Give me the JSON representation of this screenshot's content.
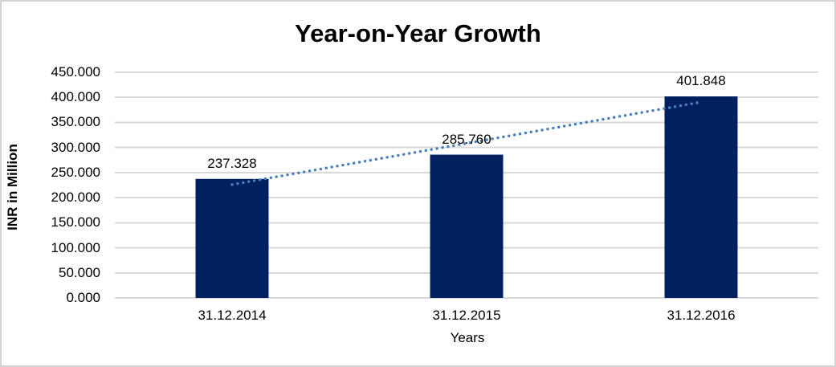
{
  "window": {
    "background_color": "#ffffff",
    "border_color": "#d3d3d3"
  },
  "chart_data": {
    "type": "bar",
    "title": "Year-on-Year Growth",
    "xlabel": "Years",
    "ylabel": "INR in Million",
    "categories": [
      "31.12.2014",
      "31.12.2015",
      "31.12.2016"
    ],
    "values": [
      237.328,
      285.76,
      401.848
    ],
    "data_labels": [
      "237.328",
      "285.760",
      "401.848"
    ],
    "y_ticks": [
      "450.000",
      "400.000",
      "350.000",
      "300.000",
      "250.000",
      "200.000",
      "150.000",
      "100.000",
      "50.000",
      "0.000"
    ],
    "ylim": [
      0,
      450
    ],
    "y_tick_step": 50,
    "grid": true,
    "legend": "none",
    "bar_color": "#002060",
    "gridline_color": "#d9d9d9",
    "axis_line_color": "#d9d9d9",
    "text_color": "#000000",
    "trendline": {
      "type": "linear",
      "style": "dotted",
      "color": "#4a7ebd",
      "start_value": 226.05,
      "end_value": 390.57
    }
  }
}
